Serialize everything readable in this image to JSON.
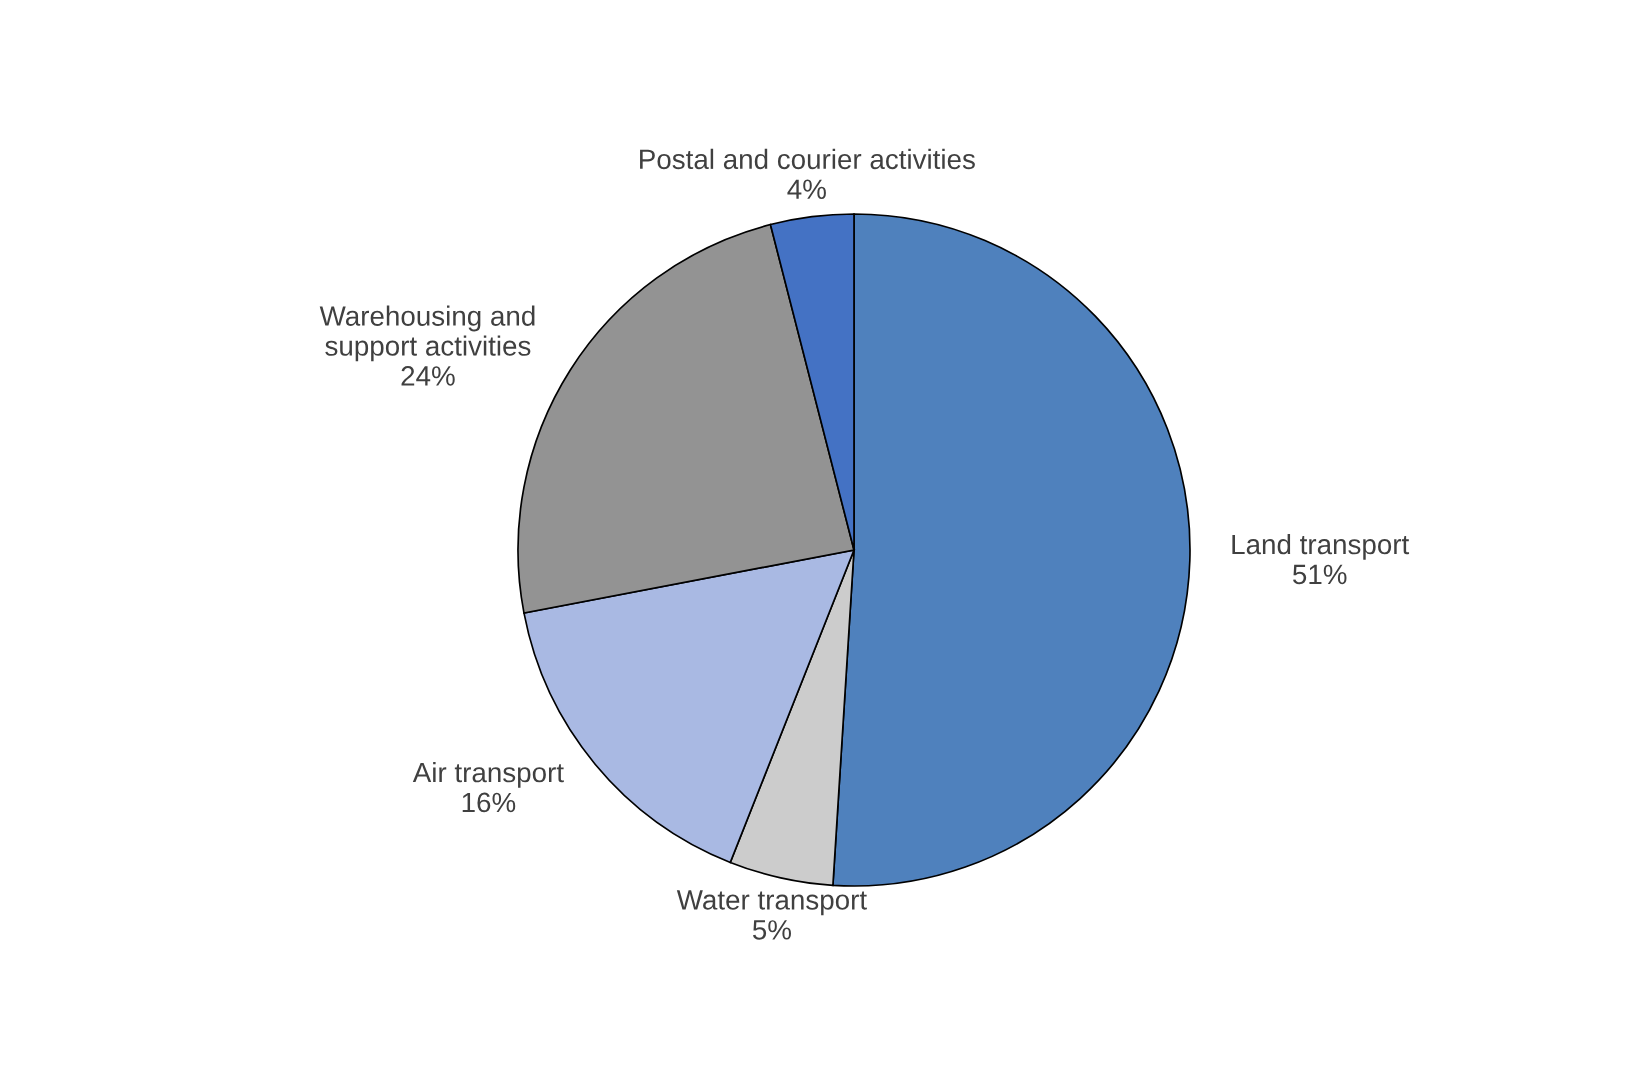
{
  "chart_data": {
    "type": "pie",
    "categories": [
      "Land transport",
      "Water transport",
      "Air transport",
      "Warehousing and\nsupport activities",
      "Postal and courier activities"
    ],
    "values": [
      51,
      5,
      16,
      24,
      4
    ],
    "colors": [
      "#4f81bd",
      "#cccccc",
      "#a9b9e3",
      "#939393",
      "#4472c4"
    ],
    "value_labels": [
      "51%",
      "5%",
      "16%",
      "24%",
      "4%"
    ]
  }
}
